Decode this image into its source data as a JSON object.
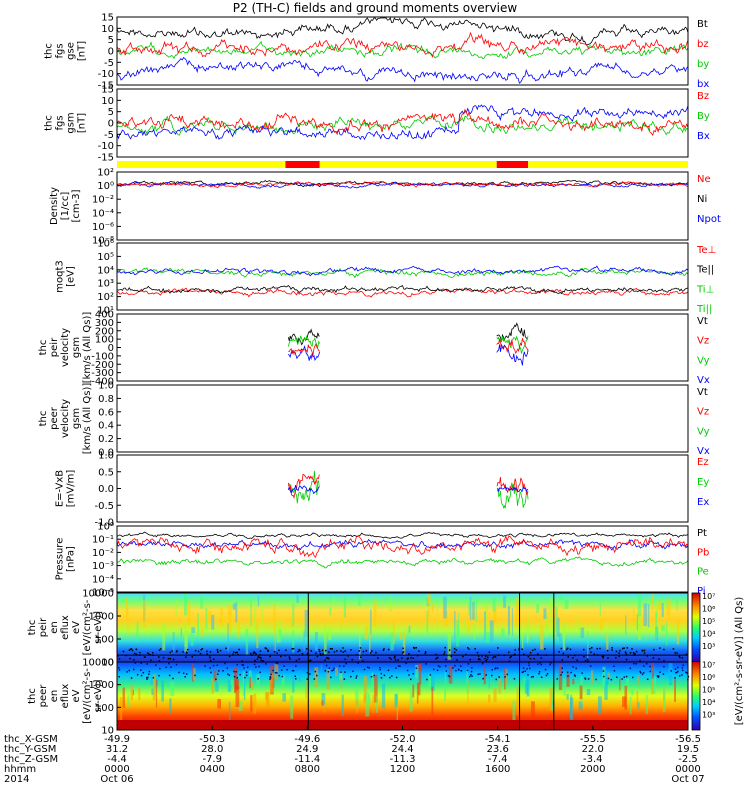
{
  "title": "P2 (TH-C) fields and ground moments overview",
  "colors": {
    "black": "#000000",
    "red": "#ff0000",
    "green": "#00cc00",
    "blue": "#0000ff",
    "yellow": "#ffff00"
  },
  "chart_data": [
    {
      "id": "p1",
      "type": "line",
      "ylabel": [
        "thc",
        "fgs",
        "gse",
        "[nT]"
      ],
      "ylim": [
        -15,
        15
      ],
      "ticks": [
        "15",
        "10",
        "5",
        "0",
        "-5",
        "-10",
        "-15"
      ],
      "legend": [
        {
          "name": "Bt",
          "color": "#000000"
        },
        {
          "name": "bz",
          "color": "#ff0000"
        },
        {
          "name": "by",
          "color": "#00cc00"
        },
        {
          "name": "bx",
          "color": "#0000ff"
        }
      ]
    },
    {
      "id": "p2",
      "type": "line",
      "ylabel": [
        "thc",
        "fgs",
        "gsm",
        "[nT]"
      ],
      "ylim": [
        -15,
        15
      ],
      "ticks": [
        "15",
        "10",
        "5",
        "0",
        "-5",
        "-10",
        "-15"
      ],
      "legend": [
        {
          "name": "Bz",
          "color": "#ff0000"
        },
        {
          "name": "By",
          "color": "#00cc00"
        },
        {
          "name": "Bx",
          "color": "#0000ff"
        }
      ]
    },
    {
      "id": "bar",
      "type": "bar",
      "segments": [
        {
          "from": 0.0,
          "to": 0.295,
          "color": "#ffff00"
        },
        {
          "from": 0.295,
          "to": 0.355,
          "color": "#ff0000"
        },
        {
          "from": 0.355,
          "to": 0.665,
          "color": "#ffff00"
        },
        {
          "from": 0.665,
          "to": 0.72,
          "color": "#ff0000"
        },
        {
          "from": 0.72,
          "to": 1.0,
          "color": "#ffff00"
        }
      ]
    },
    {
      "id": "p3",
      "type": "line",
      "ylabel": [
        "Density",
        "[1/cc]",
        "[cm-3]"
      ],
      "scale": "log",
      "ticks": [
        "10²",
        "10⁰",
        "10⁻²",
        "10⁻⁴",
        "10⁻⁶",
        "10⁻⁸"
      ],
      "legend": [
        {
          "name": "Ne",
          "color": "#ff0000"
        },
        {
          "name": "Ni",
          "color": "#000000"
        },
        {
          "name": "Npot",
          "color": "#0000ff"
        }
      ]
    },
    {
      "id": "p4",
      "type": "line",
      "ylabel": [
        "moqt3",
        "[eV]"
      ],
      "scale": "log",
      "ticks": [
        "10⁶",
        "10⁵",
        "10⁴",
        "10³",
        "10²",
        "10¹"
      ],
      "legend": [
        {
          "name": "Te⊥",
          "color": "#ff0000"
        },
        {
          "name": "Te||",
          "color": "#000000"
        },
        {
          "name": "Ti⊥",
          "color": "#00cc00"
        },
        {
          "name": "Ti||",
          "color": "#00cc00"
        }
      ]
    },
    {
      "id": "p5",
      "type": "line",
      "ylabel": [
        "thc",
        "peir",
        "velocity",
        "gsm",
        "[km/s (All Qs)]"
      ],
      "ylim": [
        -400,
        400
      ],
      "ticks": [
        "400",
        "300",
        "200",
        "100",
        "0",
        "-100",
        "-200",
        "-300",
        "-400"
      ],
      "legend": [
        {
          "name": "Vt",
          "color": "#000000"
        },
        {
          "name": "Vz",
          "color": "#ff0000"
        },
        {
          "name": "Vy",
          "color": "#00cc00"
        },
        {
          "name": "Vx",
          "color": "#0000ff"
        }
      ]
    },
    {
      "id": "p6",
      "type": "line",
      "ylabel": [
        "thc",
        "peer",
        "velocity",
        "gsm",
        "[km/s (All Qs)]"
      ],
      "ylim": [
        0,
        1
      ],
      "ticks": [
        "1.0",
        "0.8",
        "0.6",
        "0.4",
        "0.2",
        "0.0"
      ],
      "legend": [
        {
          "name": "Vt",
          "color": "#000000"
        },
        {
          "name": "Vz",
          "color": "#ff0000"
        },
        {
          "name": "Vy",
          "color": "#00cc00"
        },
        {
          "name": "Vx",
          "color": "#0000ff"
        }
      ]
    },
    {
      "id": "p7",
      "type": "line",
      "ylabel": [
        "E=-VxB",
        "[mV/m]"
      ],
      "ylim": [
        -1,
        1
      ],
      "ticks": [
        "1.0",
        "0.5",
        "0.0",
        "-0.5",
        "-1.0"
      ],
      "legend": [
        {
          "name": "Ez",
          "color": "#ff0000"
        },
        {
          "name": "Ey",
          "color": "#00cc00"
        },
        {
          "name": "Ex",
          "color": "#0000ff"
        }
      ]
    },
    {
      "id": "p8",
      "type": "line",
      "ylabel": [
        "Pressure",
        "[nPa]"
      ],
      "scale": "log",
      "ticks": [
        "10⁰",
        "10⁻¹",
        "10⁻²",
        "10⁻³",
        "10⁻⁴",
        "10⁻⁵"
      ],
      "legend": [
        {
          "name": "Pt",
          "color": "#000000"
        },
        {
          "name": "Pb",
          "color": "#ff0000"
        },
        {
          "name": "Pe",
          "color": "#00cc00"
        },
        {
          "name": "Pi",
          "color": "#0000ff"
        }
      ]
    },
    {
      "id": "p9",
      "type": "heatmap",
      "ylabel": [
        "thc",
        "peir",
        "en",
        "eflux",
        "eV",
        "[eV/(cm²-s-",
        "sr-eV)]"
      ],
      "ticks": [
        "10000",
        "1000",
        "100",
        "10"
      ]
    },
    {
      "id": "p10",
      "type": "heatmap",
      "ylabel": [
        "thc",
        "peer",
        "en",
        "eflux",
        "eV",
        "[eV/(cm²-s-",
        "sr-eV)]"
      ],
      "ticks": [
        "10000",
        "1000",
        "100",
        "10"
      ]
    }
  ],
  "colorbar": {
    "label": "[eV/(cm²-s-sr-eV)] (All Qs)",
    "ticks": [
      "10⁷",
      "10⁶",
      "10⁵",
      "10⁴",
      "10³",
      "10⁷",
      "10⁶",
      "10⁵",
      "10⁴",
      "10³"
    ]
  },
  "x_axis": {
    "row_labels": [
      "thc_X-GSM",
      "thc_Y-GSM",
      "thc_Z-GSM",
      "hhmm",
      "2014"
    ],
    "columns": [
      [
        "-49.9",
        "31.2",
        "-4.4",
        "0000",
        "Oct 06"
      ],
      [
        "-50.3",
        "28.0",
        "-7.9",
        "0400",
        ""
      ],
      [
        "-49.6",
        "24.9",
        "-11.4",
        "0800",
        ""
      ],
      [
        "-52.0",
        "24.4",
        "-11.3",
        "1200",
        ""
      ],
      [
        "-54.1",
        "23.6",
        "-7.4",
        "1600",
        ""
      ],
      [
        "-55.5",
        "22.0",
        "-3.4",
        "2000",
        ""
      ],
      [
        "-56.5",
        "19.5",
        "-2.5",
        "0000",
        "Oct 07"
      ]
    ]
  }
}
